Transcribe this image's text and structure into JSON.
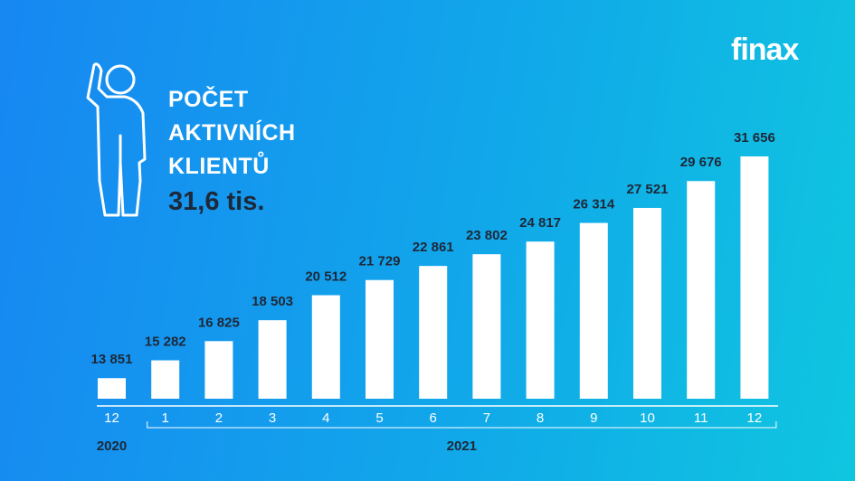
{
  "logo": "finax",
  "chart_data": {
    "type": "bar",
    "title": "POČET AKTIVNÍCH KLIENTŮ",
    "subtitle": "31,6 tis.",
    "categories": [
      "12",
      "1",
      "2",
      "3",
      "4",
      "5",
      "6",
      "7",
      "8",
      "9",
      "10",
      "11",
      "12"
    ],
    "years": [
      "2020",
      "2021"
    ],
    "values": [
      13851,
      15282,
      16825,
      18503,
      20512,
      21729,
      22861,
      23802,
      24817,
      26314,
      27521,
      29676,
      31656
    ],
    "value_labels": [
      "13 851",
      "15 282",
      "16 825",
      "18 503",
      "20 512",
      "21 729",
      "22 861",
      "23 802",
      "24 817",
      "26 314",
      "27 521",
      "29 676",
      "31 656"
    ],
    "color": "#ffffff",
    "ylim": [
      12200,
      34000
    ]
  }
}
